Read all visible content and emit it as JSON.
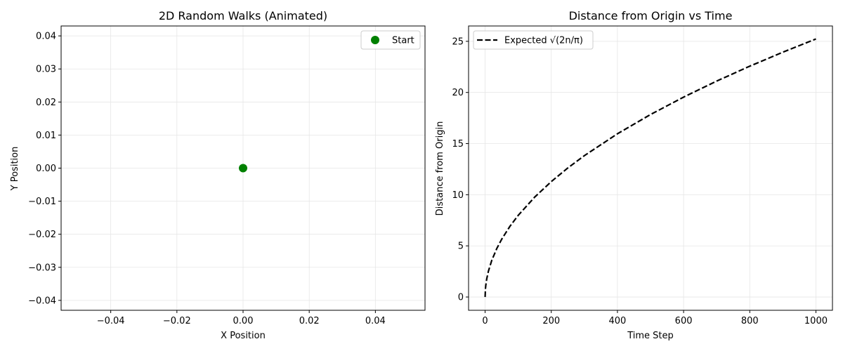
{
  "chart_data": [
    {
      "type": "scatter",
      "title": "2D Random Walks (Animated)",
      "xlabel": "X Position",
      "ylabel": "Y Position",
      "xlim": [
        -0.055,
        0.055
      ],
      "ylim": [
        -0.043,
        0.043
      ],
      "xticks": [
        -0.04,
        -0.02,
        0.0,
        0.02,
        0.04
      ],
      "xtick_labels": [
        "−0.04",
        "−0.02",
        "0.00",
        "0.02",
        "0.04"
      ],
      "yticks": [
        0.04,
        0.03,
        0.02,
        0.01,
        0.0,
        -0.01,
        -0.02,
        -0.03,
        -0.04
      ],
      "ytick_labels": [
        "0.04",
        "0.03",
        "0.02",
        "0.01",
        "0.00",
        "−0.01",
        "−0.02",
        "−0.03",
        "−0.04"
      ],
      "grid": true,
      "legend": {
        "placement": "top-right",
        "entries": [
          {
            "label": "Start",
            "marker": "circle",
            "color": "#008000"
          }
        ]
      },
      "series": [
        {
          "name": "Start",
          "color": "#008000",
          "points": [
            {
              "x": 0.0,
              "y": 0.0
            }
          ]
        }
      ]
    },
    {
      "type": "line",
      "title": "Distance from Origin vs Time",
      "xlabel": "Time Step",
      "ylabel": "Distance from Origin",
      "xlim": [
        -50,
        1050
      ],
      "ylim": [
        -1.3,
        26.5
      ],
      "xticks": [
        0,
        200,
        400,
        600,
        800,
        1000
      ],
      "xtick_labels": [
        "0",
        "200",
        "400",
        "600",
        "800",
        "1000"
      ],
      "yticks": [
        0,
        5,
        10,
        15,
        20,
        25
      ],
      "ytick_labels": [
        "0",
        "5",
        "10",
        "15",
        "20",
        "25"
      ],
      "grid": true,
      "legend": {
        "placement": "top-left",
        "entries": [
          {
            "label": "Expected √(2n/π)",
            "style": "dashed",
            "color": "#000000"
          }
        ]
      },
      "series": [
        {
          "name": "Expected √(2n/π)",
          "color": "#000000",
          "style": "dashed",
          "x": [
            0,
            1,
            2,
            5,
            10,
            20,
            35,
            50,
            75,
            100,
            150,
            200,
            250,
            300,
            400,
            500,
            600,
            700,
            800,
            900,
            1000
          ],
          "y": [
            0,
            0.798,
            1.128,
            1.784,
            2.523,
            3.568,
            4.72,
            5.642,
            6.91,
            7.979,
            9.772,
            11.284,
            12.616,
            13.82,
            15.958,
            17.841,
            19.544,
            21.11,
            22.568,
            23.937,
            25.231
          ]
        }
      ]
    }
  ]
}
